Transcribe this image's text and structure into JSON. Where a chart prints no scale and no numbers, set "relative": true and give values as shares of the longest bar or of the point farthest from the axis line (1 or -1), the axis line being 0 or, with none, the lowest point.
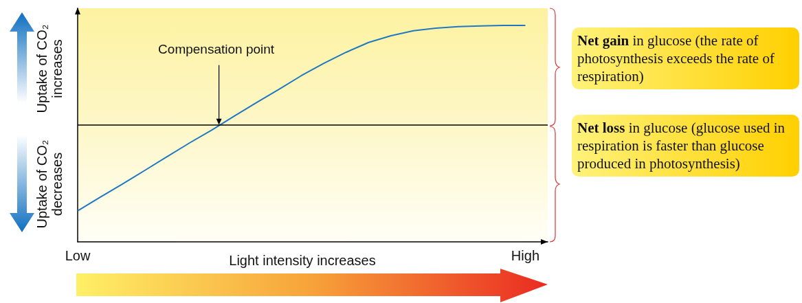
{
  "chart_data": {
    "type": "line",
    "xlabel": "Light intensity increases",
    "relative": true,
    "marker": "none",
    "line_style": "solid",
    "categories": [
      "Low",
      null,
      null,
      null,
      null,
      null,
      null,
      null,
      null,
      null,
      null,
      null,
      null,
      null,
      null,
      null,
      null,
      null,
      null,
      null,
      "High",
      null
    ],
    "series": [
      {
        "color": "#1f78c1",
        "values": [
          0.143,
          0.206,
          0.267,
          0.33,
          0.394,
          0.457,
          0.517,
          0.581,
          0.644,
          0.705,
          0.768,
          0.825,
          0.876,
          0.921,
          0.952,
          0.975,
          0.987,
          0.994,
          0.997,
          1,
          1,
          null
        ]
      }
    ],
    "ref_lines": [
      {
        "axis": "y",
        "value": 0.537,
        "color": "#000000"
      }
    ],
    "annotations": [
      {
        "text": "Compensation point",
        "y": 0.537
      },
      "Uptake of CO₂ increases",
      "Uptake of CO₂ decreases",
      "Net gain in glucose (the rate of photosynthesis exceeds the rate of respiration)",
      "Net loss in glucose (glucose used in respiration is faster than glucose produced in photosynthesis)"
    ]
  }
}
